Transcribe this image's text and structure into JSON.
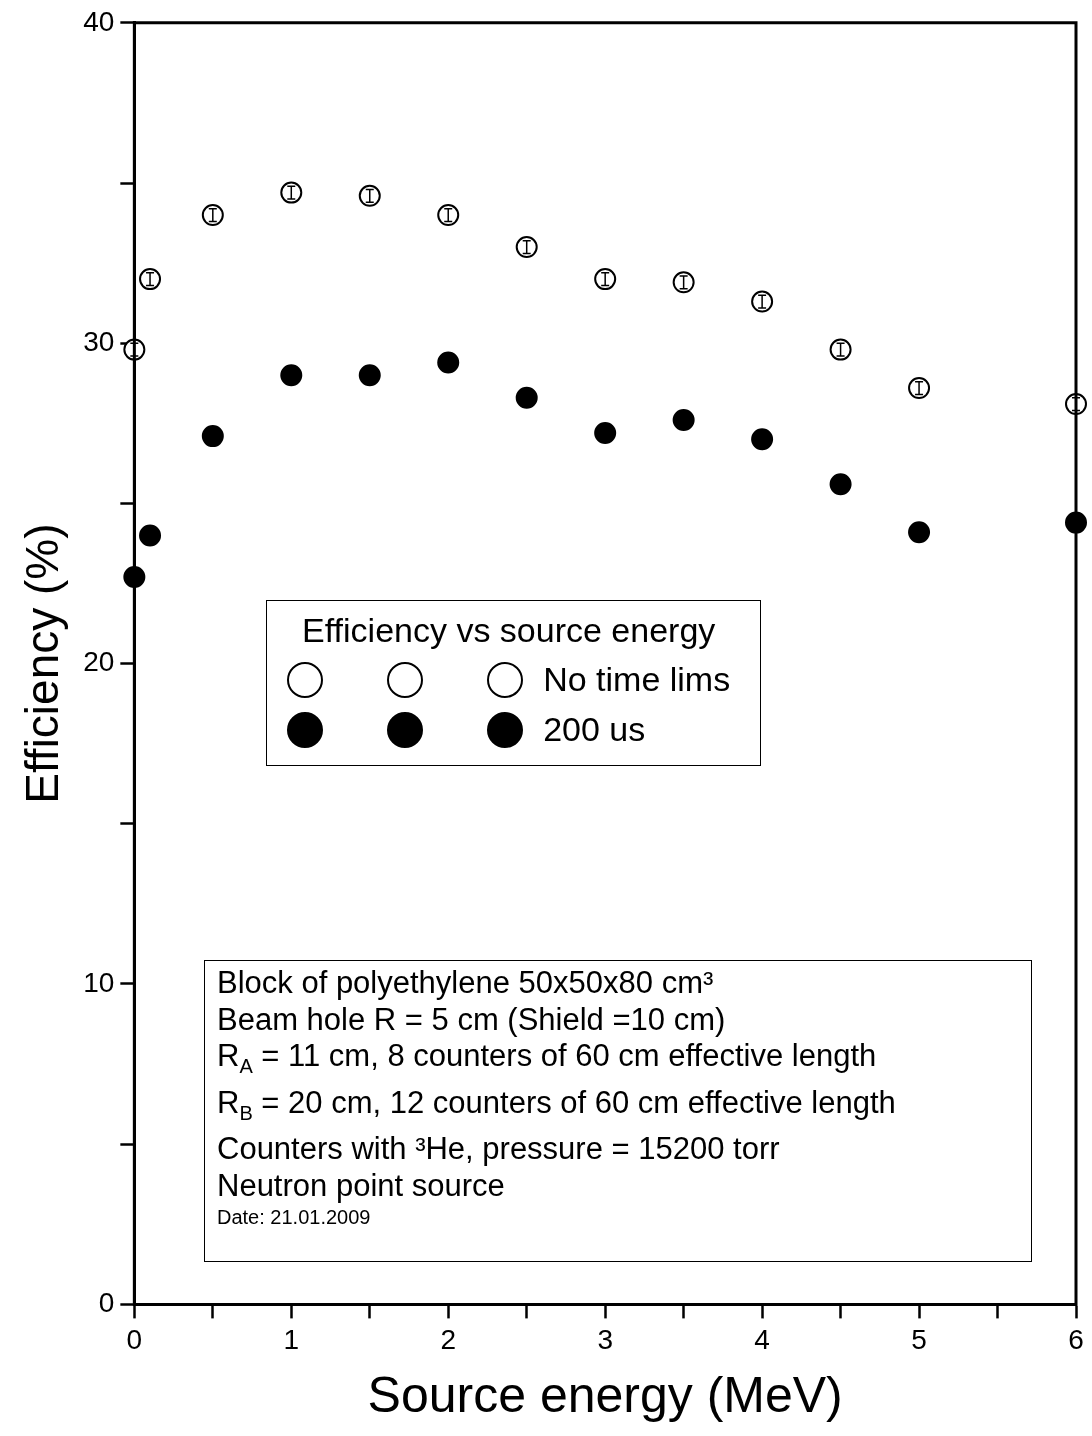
{
  "chart_data": {
    "type": "scatter",
    "xlabel": "Source energy (MeV)",
    "ylabel": "Efficiency (%)",
    "legend_title": "Efficiency vs source energy",
    "legend": "center",
    "grid": false,
    "marker": "circle",
    "x": [
      0,
      0.1,
      0.5,
      1,
      1.5,
      2,
      2.5,
      3,
      3.5,
      4,
      4.5,
      5,
      6
    ],
    "xlim": [
      0,
      6
    ],
    "xticks": [
      0,
      {
        "value": 0.5,
        "label": null
      },
      1,
      {
        "value": 1.5,
        "label": null
      },
      2,
      {
        "value": 2.5,
        "label": null
      },
      3,
      {
        "value": 3.5,
        "label": null
      },
      4,
      {
        "value": 4.5,
        "label": null
      },
      5,
      {
        "value": 5.5,
        "label": null
      },
      6
    ],
    "ylim": [
      0,
      40
    ],
    "yticks": [
      0,
      {
        "value": 5,
        "label": null
      },
      10,
      {
        "value": 15,
        "label": null
      },
      20,
      {
        "value": 25,
        "label": null
      },
      30,
      {
        "value": 35,
        "label": null
      },
      40
    ],
    "series": [
      {
        "name": "No time lims",
        "color": "#ffffff",
        "values": [
          29.8,
          32.0,
          34.0,
          34.7,
          34.6,
          34.0,
          33.0,
          32.0,
          31.9,
          31.3,
          29.8,
          28.6,
          28.1
        ],
        "errors": [
          0.2,
          0.2,
          0.2,
          0.2,
          0.2,
          0.2,
          0.2,
          0.2,
          0.2,
          0.2,
          0.2,
          0.2,
          0.2
        ]
      },
      {
        "name": "200 us",
        "color": "#000000",
        "values": [
          22.7,
          24.0,
          27.1,
          29.0,
          29.0,
          29.4,
          28.3,
          27.2,
          27.6,
          27.0,
          25.6,
          24.1,
          24.4
        ]
      }
    ],
    "annotations": [
      "Block of polyethylene 50x50x80 cm³",
      "Beam hole R = 5 cm (Shield =10 cm)",
      "R$_{A}$ = 11 cm, 8 counters of 60 cm effective length",
      "R$_{B}$ = 20 cm, 12 counters of 60 cm effective length",
      "Counters with ³He, pressure = 15200 torr",
      "Neutron point source",
      "Date: 21.01.2009"
    ]
  }
}
